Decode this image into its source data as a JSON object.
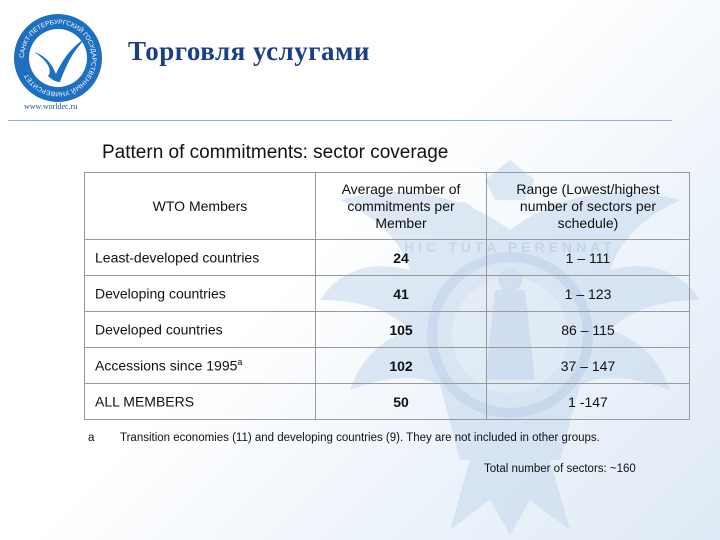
{
  "header": {
    "title": "Торговля услугами",
    "site": "www.worldec.ru",
    "logo_text": "САНКТ-ПЕТЕРБУРГСКИЙ ГОСУДАРСТВЕННЫЙ УНИВЕРСИТЕТ",
    "emblem_motto": "HIC TUTA PERENNAT"
  },
  "subtitle": "Pattern of commitments: sector coverage",
  "table": {
    "headers": [
      "WTO Members",
      "Average number of commitments per Member",
      "Range (Lowest/highest number of sectors per schedule)"
    ],
    "rows": [
      {
        "member": "Least-developed countries",
        "sup": "",
        "avg": "24",
        "range": "1 – 111"
      },
      {
        "member": "Developing countries",
        "sup": "",
        "avg": "41",
        "range": "1 – 123"
      },
      {
        "member": "Developed countries",
        "sup": "",
        "avg": "105",
        "range": "86 – 115"
      },
      {
        "member": "Accessions since 1995",
        "sup": "a",
        "avg": "102",
        "range": "37 – 147"
      },
      {
        "member": "ALL MEMBERS",
        "sup": "",
        "avg": "50",
        "range": "1 -147"
      }
    ]
  },
  "footnote": {
    "mark": "a",
    "text": "Transition economies (11) and developing countries (9).  They are not included in other groups."
  },
  "total": "Total number of sectors:  ~160",
  "colors": {
    "title": "#1b3f86",
    "logo": "#1e6fc0",
    "emblem": "#c6d8ee"
  }
}
